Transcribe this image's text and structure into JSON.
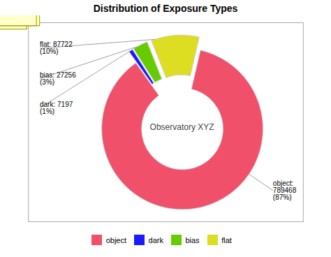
{
  "chart_data": {
    "type": "pie",
    "title": "Distribution of Exposure Types",
    "categories": [
      "object",
      "dark",
      "bias",
      "flat"
    ],
    "values": [
      789468,
      7197,
      27256,
      87722
    ],
    "colors": [
      "#f0506a",
      "#1a1aff",
      "#66cc00",
      "#dddd22"
    ],
    "annotations": [
      {
        "text": "Observatory XYZ"
      },
      {
        "category": "object",
        "text": "object:\n789468\n(87%)"
      },
      {
        "category": "flat",
        "text": "flat: 87722\n(10%)"
      },
      {
        "category": "bias",
        "text": "bias: 27256\n(3%)"
      },
      {
        "category": "dark",
        "text": "dark: 7197\n(1%)"
      }
    ],
    "legend": "bottom",
    "tick_labels": false,
    "xlim": [
      -1.5,
      1.4
    ],
    "ylim": [
      -1.05,
      1.05
    ]
  }
}
